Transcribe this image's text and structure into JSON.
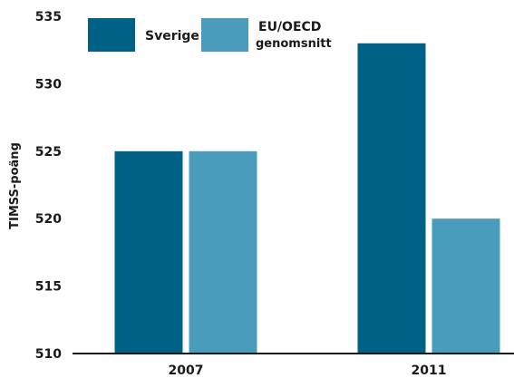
{
  "chart_data": {
    "type": "bar",
    "categories": [
      "2007",
      "2011"
    ],
    "series": [
      {
        "name": "Sverige",
        "values": [
          525,
          533
        ],
        "color": "#006186"
      },
      {
        "name": "EU/OECD genomsnitt",
        "values": [
          525,
          520
        ],
        "color": "#4a9cbc"
      }
    ],
    "ylabel": "TIMSS-poäng",
    "ylim": [
      510,
      535
    ],
    "yticks": [
      510,
      515,
      520,
      525,
      530,
      535
    ],
    "grid": false,
    "legend_position": "top-left"
  },
  "legend": {
    "items": [
      {
        "lines": [
          "Sverige"
        ]
      },
      {
        "lines": [
          "EU/OECD",
          "genomsnitt"
        ]
      }
    ]
  },
  "colors": {
    "axis": "#1a1a1a"
  }
}
